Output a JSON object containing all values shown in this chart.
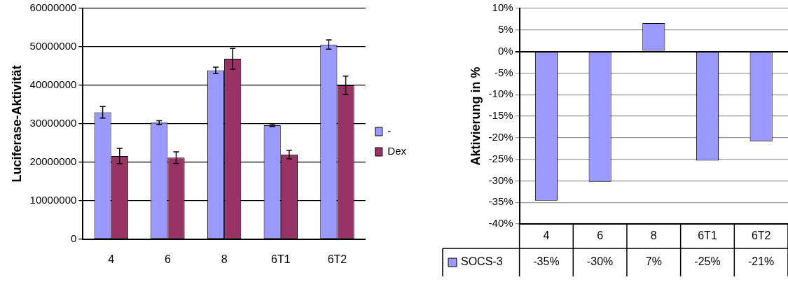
{
  "chart_data": [
    {
      "type": "bar",
      "ylabel": "Luciferase-Aktivität",
      "categories": [
        "4",
        "6",
        "8",
        "6T1",
        "6T2"
      ],
      "series": [
        {
          "name": "-",
          "color": "#9999ff",
          "values": [
            33000000,
            30300000,
            43900000,
            29600000,
            50600000
          ],
          "errors": [
            1500000,
            500000,
            800000,
            300000,
            1200000
          ]
        },
        {
          "name": "Dex",
          "color": "#993366",
          "values": [
            21600000,
            21200000,
            46900000,
            22000000,
            40000000
          ],
          "errors": [
            2000000,
            1500000,
            2700000,
            1100000,
            2400000
          ]
        }
      ],
      "ylim": [
        0,
        60000000
      ],
      "yticks": [
        0,
        10000000,
        20000000,
        30000000,
        40000000,
        50000000,
        60000000
      ],
      "grid": "y",
      "legend": "right"
    },
    {
      "type": "bar",
      "ylabel": "Aktivierung in %",
      "categories": [
        "4",
        "6",
        "8",
        "6T1",
        "6T2"
      ],
      "series": [
        {
          "name": "SOCS-3",
          "color": "#9999ff",
          "values": [
            -34.6,
            -30.2,
            6.6,
            -25.3,
            -20.9
          ],
          "value_labels": [
            "-35%",
            "-30%",
            "7%",
            "-25%",
            "-21%"
          ]
        }
      ],
      "ylim": [
        -40,
        10
      ],
      "yticks": [
        {
          "value": -40,
          "label": "-40%"
        },
        {
          "value": -35,
          "label": "-35%"
        },
        {
          "value": -30,
          "label": "-30%"
        },
        {
          "value": -25,
          "label": "-25%"
        },
        {
          "value": -20,
          "label": "-20%"
        },
        {
          "value": -15,
          "label": "-15%"
        },
        {
          "value": -10,
          "label": "-10%"
        },
        {
          "value": -5,
          "label": "-5%"
        },
        {
          "value": 0,
          "label": "0%"
        },
        {
          "value": 5,
          "label": "5%"
        },
        {
          "value": 10,
          "label": "10%"
        }
      ],
      "grid": "y",
      "legend": "bottom"
    }
  ]
}
